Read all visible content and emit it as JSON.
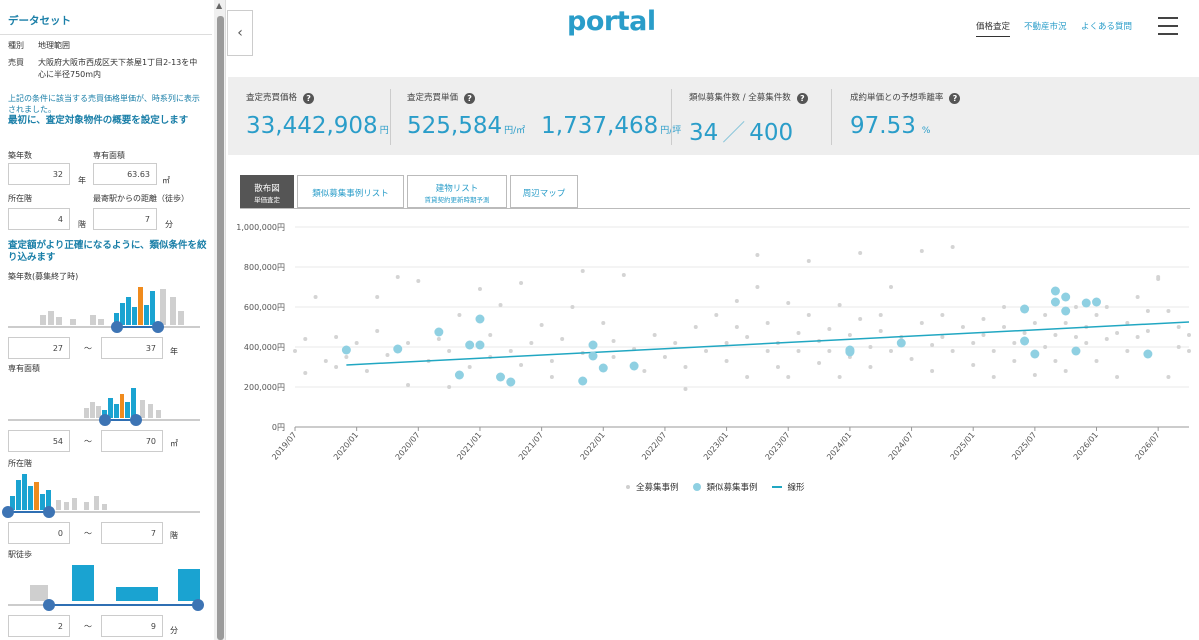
{
  "sidebar": {
    "title": "データセット",
    "header_row": {
      "k": "種別",
      "v": "地理範囲"
    },
    "data_row": {
      "k": "売買",
      "v": "大阪府大阪市西成区天下茶屋1丁目2-13を中心に半径750m内"
    },
    "note": "上記の条件に該当する売買価格単価が、時系列に表示されました。",
    "heading1": "最初に、査定対象物件の概要を設定します",
    "fields": {
      "age_label": "築年数",
      "age_value": "32",
      "age_unit": "年",
      "area_label": "専有面積",
      "area_value": "63.63",
      "area_unit": "㎡",
      "floor_label": "所在階",
      "floor_value": "4",
      "floor_unit": "階",
      "walk_label": "最寄駅からの距離（徒歩）",
      "walk_value": "7",
      "walk_unit": "分"
    },
    "heading2": "査定額がより正確になるように、類似条件を絞り込みます",
    "filters": {
      "age": {
        "label": "築年数(募集終了時)",
        "min": "27",
        "max": "37",
        "unit": "年",
        "tilde": "〜"
      },
      "area": {
        "label": "専有面積",
        "min": "54",
        "max": "70",
        "unit": "㎡",
        "tilde": "〜"
      },
      "floor": {
        "label": "所在階",
        "min": "0",
        "max": "7",
        "unit": "階",
        "tilde": "〜"
      },
      "walk": {
        "label": "駅徒歩",
        "min": "2",
        "max": "9",
        "unit": "分",
        "tilde": "〜"
      }
    }
  },
  "header": {
    "logo": "portal",
    "nav": [
      "価格査定",
      "不動産市況",
      "よくある質問"
    ],
    "back_icon": "chevron-left-icon",
    "menu_icon": "hamburger-icon"
  },
  "stats": [
    {
      "label": "査定売買価格",
      "value": "33,442,908",
      "unit": "円"
    },
    {
      "label": "査定売買単価",
      "value": "525,584",
      "unit": "円/㎡",
      "value2": "1,737,468",
      "unit2": "円/坪"
    },
    {
      "label": "類似募集件数 / 全募集件数",
      "value": "34",
      "sep": "／",
      "value2": "400"
    },
    {
      "label": "成約単価との予想乖離率",
      "value": "97.53",
      "unit": "%"
    }
  ],
  "tabs": [
    {
      "label": "散布図",
      "sub": "単価査定",
      "active": true
    },
    {
      "label": "類似募集事例リスト",
      "sub": ""
    },
    {
      "label": "建物リスト",
      "sub": "賃貸契約更新時期予測"
    },
    {
      "label": "周辺マップ",
      "sub": ""
    }
  ],
  "chart_data": {
    "type": "scatter",
    "y_ticks": [
      "1,000,000円",
      "800,000円",
      "600,000円",
      "400,000円",
      "200,000円",
      "0円"
    ],
    "ylim": [
      0,
      1000000
    ],
    "x_ticks": [
      "2019/07",
      "2020/01",
      "2020/07",
      "2021/01",
      "2021/07",
      "2022/01",
      "2022/07",
      "2023/01",
      "2023/07",
      "2024/01",
      "2024/07",
      "2025/01",
      "2025/07",
      "2026/01",
      "2026/07"
    ],
    "x_start": "2019/07",
    "x_end": "2026/10",
    "legend": [
      "全募集事例",
      "類似募集事例",
      "線形"
    ],
    "colors": {
      "all": "#d4d4d4",
      "similar": "#8fd0e2",
      "trend": "#21a7c2"
    },
    "trend": {
      "start": [
        "2019/12",
        310000
      ],
      "end": [
        "2026/10",
        525000
      ]
    },
    "similar": [
      [
        "2019/12",
        385000
      ],
      [
        "2020/05",
        390000
      ],
      [
        "2020/09",
        475000
      ],
      [
        "2020/11",
        260000
      ],
      [
        "2020/12",
        410000
      ],
      [
        "2021/01",
        410000
      ],
      [
        "2021/01",
        540000
      ],
      [
        "2021/03",
        250000
      ],
      [
        "2021/04",
        225000
      ],
      [
        "2021/11",
        230000
      ],
      [
        "2021/12",
        410000
      ],
      [
        "2021/12",
        355000
      ],
      [
        "2022/01",
        295000
      ],
      [
        "2022/04",
        305000
      ],
      [
        "2024/01",
        375000
      ],
      [
        "2024/01",
        385000
      ],
      [
        "2024/01",
        380000
      ],
      [
        "2024/06",
        420000
      ],
      [
        "2025/06",
        590000
      ],
      [
        "2025/06",
        430000
      ],
      [
        "2025/07",
        365000
      ],
      [
        "2025/09",
        680000
      ],
      [
        "2025/09",
        625000
      ],
      [
        "2025/10",
        650000
      ],
      [
        "2025/10",
        580000
      ],
      [
        "2025/11",
        380000
      ],
      [
        "2025/12",
        620000
      ],
      [
        "2026/01",
        625000
      ],
      [
        "2026/06",
        365000
      ]
    ],
    "all": [
      [
        "2019/07",
        380000
      ],
      [
        "2019/08",
        440000
      ],
      [
        "2019/08",
        270000
      ],
      [
        "2019/09",
        650000
      ],
      [
        "2019/10",
        330000
      ],
      [
        "2019/11",
        300000
      ],
      [
        "2019/11",
        450000
      ],
      [
        "2019/12",
        350000
      ],
      [
        "2020/01",
        420000
      ],
      [
        "2020/02",
        280000
      ],
      [
        "2020/03",
        650000
      ],
      [
        "2020/03",
        480000
      ],
      [
        "2020/04",
        360000
      ],
      [
        "2020/05",
        750000
      ],
      [
        "2020/06",
        210000
      ],
      [
        "2020/06",
        420000
      ],
      [
        "2020/07",
        730000
      ],
      [
        "2020/08",
        330000
      ],
      [
        "2020/09",
        440000
      ],
      [
        "2020/10",
        200000
      ],
      [
        "2020/10",
        380000
      ],
      [
        "2020/11",
        560000
      ],
      [
        "2020/12",
        300000
      ],
      [
        "2021/01",
        690000
      ],
      [
        "2021/02",
        350000
      ],
      [
        "2021/02",
        460000
      ],
      [
        "2021/03",
        610000
      ],
      [
        "2021/04",
        380000
      ],
      [
        "2021/05",
        310000
      ],
      [
        "2021/05",
        720000
      ],
      [
        "2021/06",
        420000
      ],
      [
        "2021/07",
        510000
      ],
      [
        "2021/08",
        330000
      ],
      [
        "2021/08",
        250000
      ],
      [
        "2021/09",
        440000
      ],
      [
        "2021/10",
        600000
      ],
      [
        "2021/11",
        370000
      ],
      [
        "2021/11",
        780000
      ],
      [
        "2022/01",
        520000
      ],
      [
        "2022/02",
        350000
      ],
      [
        "2022/02",
        430000
      ],
      [
        "2022/03",
        760000
      ],
      [
        "2022/04",
        390000
      ],
      [
        "2022/05",
        280000
      ],
      [
        "2022/06",
        460000
      ],
      [
        "2022/07",
        350000
      ],
      [
        "2022/08",
        420000
      ],
      [
        "2022/09",
        190000
      ],
      [
        "2022/09",
        300000
      ],
      [
        "2022/10",
        500000
      ],
      [
        "2022/11",
        380000
      ],
      [
        "2022/12",
        560000
      ],
      [
        "2023/01",
        420000
      ],
      [
        "2023/01",
        330000
      ],
      [
        "2023/02",
        630000
      ],
      [
        "2023/02",
        500000
      ],
      [
        "2023/03",
        450000
      ],
      [
        "2023/03",
        250000
      ],
      [
        "2023/04",
        700000
      ],
      [
        "2023/04",
        860000
      ],
      [
        "2023/05",
        380000
      ],
      [
        "2023/05",
        520000
      ],
      [
        "2023/06",
        300000
      ],
      [
        "2023/06",
        420000
      ],
      [
        "2023/07",
        620000
      ],
      [
        "2023/07",
        250000
      ],
      [
        "2023/08",
        470000
      ],
      [
        "2023/08",
        380000
      ],
      [
        "2023/09",
        560000
      ],
      [
        "2023/09",
        830000
      ],
      [
        "2023/10",
        430000
      ],
      [
        "2023/10",
        320000
      ],
      [
        "2023/11",
        490000
      ],
      [
        "2023/11",
        380000
      ],
      [
        "2023/12",
        610000
      ],
      [
        "2023/12",
        250000
      ],
      [
        "2024/01",
        460000
      ],
      [
        "2024/01",
        350000
      ],
      [
        "2024/02",
        540000
      ],
      [
        "2024/02",
        870000
      ],
      [
        "2024/03",
        400000
      ],
      [
        "2024/03",
        300000
      ],
      [
        "2024/04",
        480000
      ],
      [
        "2024/04",
        560000
      ],
      [
        "2024/05",
        380000
      ],
      [
        "2024/05",
        700000
      ],
      [
        "2024/06",
        450000
      ],
      [
        "2024/07",
        340000
      ],
      [
        "2024/08",
        520000
      ],
      [
        "2024/08",
        880000
      ],
      [
        "2024/09",
        410000
      ],
      [
        "2024/09",
        280000
      ],
      [
        "2024/10",
        560000
      ],
      [
        "2024/10",
        450000
      ],
      [
        "2024/11",
        380000
      ],
      [
        "2024/11",
        900000
      ],
      [
        "2024/12",
        500000
      ],
      [
        "2025/01",
        420000
      ],
      [
        "2025/01",
        310000
      ],
      [
        "2025/02",
        540000
      ],
      [
        "2025/02",
        460000
      ],
      [
        "2025/03",
        250000
      ],
      [
        "2025/03",
        380000
      ],
      [
        "2025/04",
        500000
      ],
      [
        "2025/04",
        600000
      ],
      [
        "2025/05",
        420000
      ],
      [
        "2025/05",
        330000
      ],
      [
        "2025/06",
        470000
      ],
      [
        "2025/07",
        260000
      ],
      [
        "2025/07",
        520000
      ],
      [
        "2025/08",
        400000
      ],
      [
        "2025/08",
        560000
      ],
      [
        "2025/09",
        330000
      ],
      [
        "2025/09",
        460000
      ],
      [
        "2025/10",
        520000
      ],
      [
        "2025/10",
        280000
      ],
      [
        "2025/11",
        450000
      ],
      [
        "2025/11",
        600000
      ],
      [
        "2025/12",
        420000
      ],
      [
        "2025/12",
        500000
      ],
      [
        "2026/01",
        330000
      ],
      [
        "2026/01",
        560000
      ],
      [
        "2026/02",
        440000
      ],
      [
        "2026/02",
        600000
      ],
      [
        "2026/03",
        250000
      ],
      [
        "2026/03",
        470000
      ],
      [
        "2026/04",
        520000
      ],
      [
        "2026/04",
        380000
      ],
      [
        "2026/05",
        650000
      ],
      [
        "2026/05",
        450000
      ],
      [
        "2026/06",
        580000
      ],
      [
        "2026/06",
        480000
      ],
      [
        "2026/07",
        740000
      ],
      [
        "2026/07",
        750000
      ],
      [
        "2026/08",
        580000
      ],
      [
        "2026/08",
        250000
      ],
      [
        "2026/09",
        400000
      ],
      [
        "2026/09",
        500000
      ],
      [
        "2026/10",
        380000
      ],
      [
        "2026/10",
        460000
      ]
    ]
  }
}
